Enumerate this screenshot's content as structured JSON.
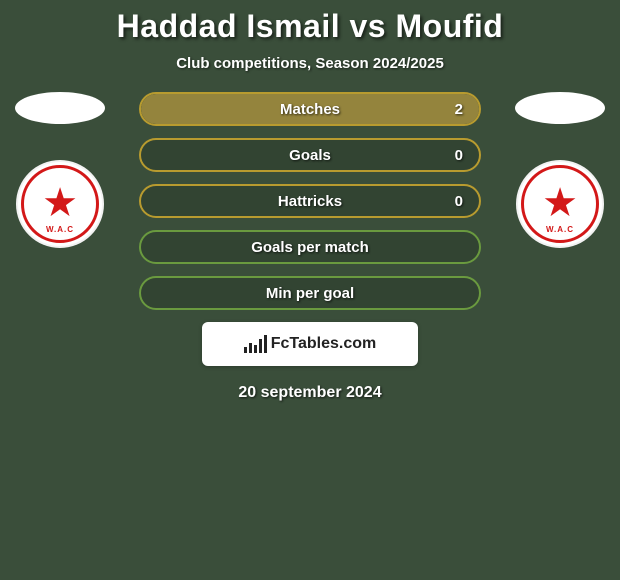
{
  "title": "Haddad Ismail vs Moufid",
  "subtitle": "Club competitions, Season 2024/2025",
  "date": "20 september 2024",
  "fctables_label": "FcTables.com",
  "colors": {
    "background": "#3a4e3a",
    "row_yellow_border": "#b89b2f",
    "row_yellow_fill": "#94843d",
    "row_green_border": "#6a9a3f",
    "row_green_fill": "#5c8a3a",
    "text": "#ffffff",
    "badge_red": "#d31818"
  },
  "stats": [
    {
      "label": "Matches",
      "value": "2",
      "style": "yellow",
      "fill_pct": 100
    },
    {
      "label": "Goals",
      "value": "0",
      "style": "yellow",
      "fill_pct": 0
    },
    {
      "label": "Hattricks",
      "value": "0",
      "style": "yellow",
      "fill_pct": 0
    },
    {
      "label": "Goals per match",
      "value": "",
      "style": "green",
      "fill_pct": 0
    },
    {
      "label": "Min per goal",
      "value": "",
      "style": "green",
      "fill_pct": 0
    }
  ],
  "club_badge_text": "W.A.C"
}
